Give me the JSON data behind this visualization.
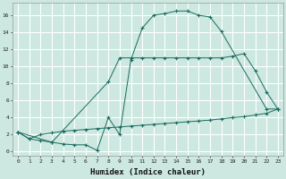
{
  "xlabel": "Humidex (Indice chaleur)",
  "bg_color": "#cce8e0",
  "line_color": "#1a6b5e",
  "grid_color": "#ffffff",
  "xlim": [
    -0.5,
    23.5
  ],
  "ylim": [
    -0.5,
    17.5
  ],
  "yticks": [
    0,
    2,
    4,
    6,
    8,
    10,
    12,
    14,
    16
  ],
  "xticks": [
    0,
    1,
    2,
    3,
    4,
    5,
    6,
    7,
    8,
    9,
    10,
    11,
    12,
    13,
    14,
    15,
    16,
    17,
    18,
    19,
    20,
    21,
    22,
    23
  ],
  "line1_x": [
    0,
    1,
    2,
    3,
    4,
    5,
    6,
    7,
    8,
    9,
    10,
    11,
    12,
    13,
    14,
    15,
    16,
    17,
    18,
    22,
    23
  ],
  "line1_y": [
    2.3,
    1.5,
    1.3,
    1.1,
    0.9,
    0.8,
    0.8,
    0.15,
    4.0,
    2.0,
    10.8,
    14.5,
    16.0,
    16.2,
    16.5,
    16.5,
    16.0,
    15.8,
    14.1,
    5.0,
    5.0
  ],
  "line2_x": [
    0,
    3,
    8,
    9,
    10,
    11,
    12,
    13,
    14,
    15,
    16,
    17,
    18,
    19,
    20,
    21,
    22,
    23
  ],
  "line2_y": [
    2.3,
    1.1,
    8.2,
    11.0,
    11.0,
    11.0,
    11.0,
    11.0,
    11.0,
    11.0,
    11.0,
    11.0,
    11.0,
    11.2,
    11.5,
    9.5,
    7.0,
    5.0
  ],
  "line3_x": [
    0,
    1,
    2,
    3,
    4,
    5,
    6,
    7,
    8,
    9,
    10,
    11,
    12,
    13,
    14,
    15,
    16,
    17,
    18,
    19,
    20,
    21,
    22,
    23
  ],
  "line3_y": [
    2.3,
    1.5,
    2.0,
    2.2,
    2.4,
    2.5,
    2.6,
    2.7,
    2.8,
    2.9,
    3.0,
    3.1,
    3.2,
    3.3,
    3.4,
    3.5,
    3.6,
    3.7,
    3.85,
    4.0,
    4.1,
    4.3,
    4.5,
    5.0
  ]
}
